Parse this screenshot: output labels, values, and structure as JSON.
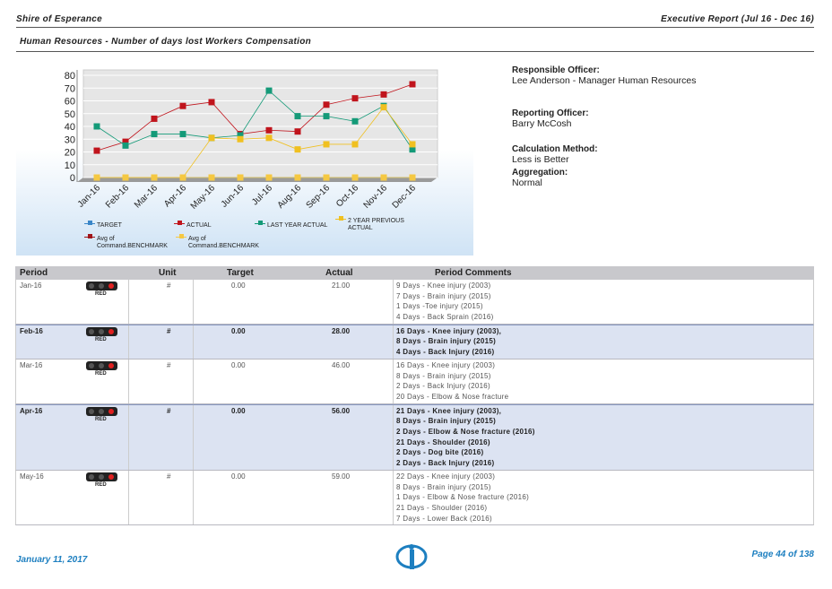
{
  "header": {
    "org": "Shire of Esperance",
    "report": "Executive Report (Jul 16 - Dec 16)",
    "subtitle": "Human Resources - Number of days lost Workers Compensation"
  },
  "chart_data": {
    "type": "line",
    "categories": [
      "Jan-16",
      "Feb-16",
      "Mar-16",
      "Apr-16",
      "May-16",
      "Jun-16",
      "Jul-16",
      "Aug-16",
      "Sep-16",
      "Oct-16",
      "Nov-16",
      "Dec-16"
    ],
    "ylim": [
      0,
      80
    ],
    "yticks": [
      0,
      10,
      20,
      30,
      40,
      50,
      60,
      70,
      80
    ],
    "grid": true,
    "legend_position": "bottom",
    "series": [
      {
        "name": "TARGET",
        "color": "#3a86c8",
        "values": [
          0,
          0,
          0,
          0,
          0,
          0,
          0,
          0,
          0,
          0,
          0,
          0
        ]
      },
      {
        "name": "ACTUAL",
        "color": "#c0141c",
        "values": [
          21,
          28,
          46,
          56,
          59,
          34,
          37,
          36,
          57,
          62,
          65,
          73
        ]
      },
      {
        "name": "LAST YEAR ACTUAL",
        "color": "#149a78",
        "values": [
          40,
          25,
          34,
          34,
          31,
          33,
          68,
          48,
          48,
          44,
          56,
          22
        ]
      },
      {
        "name": "2 YEAR PREVIOUS ACTUAL",
        "color": "#f0c020",
        "values": [
          0,
          0,
          0,
          0,
          31,
          30,
          31,
          22,
          26,
          26,
          55,
          26
        ]
      },
      {
        "name": "Avg of Command.BENCHMARK",
        "color": "#a01418",
        "values": [
          null,
          null,
          null,
          null,
          null,
          null,
          null,
          null,
          null,
          null,
          null,
          null
        ]
      },
      {
        "name": "Avg of Command.BENCHMARK",
        "color": "#f5c842",
        "values": [
          0,
          0,
          0,
          0,
          0,
          0,
          0,
          0,
          0,
          0,
          0,
          0
        ]
      }
    ]
  },
  "info": [
    {
      "label": "Responsible Officer:",
      "value": "Lee Anderson - Manager Human Resources"
    },
    {
      "label": "Reporting Officer:",
      "value": "Barry McCosh"
    },
    {
      "label": "Calculation Method:",
      "value": "Less is Better"
    },
    {
      "label": "Aggregation:",
      "value": "Normal"
    }
  ],
  "table": {
    "columns": [
      "Period",
      "Unit",
      "Target",
      "Actual",
      "Period Comments"
    ],
    "rows": [
      {
        "period": "Jan-16",
        "status": "RED",
        "unit": "#",
        "target": "0.00",
        "actual": "21.00",
        "comments": [
          "9 Days - Knee injury (2003)",
          "7 Days - Brain injury (2015)",
          "1 Days -Toe injury (2015)",
          "4 Days - Back Sprain (2016)"
        ]
      },
      {
        "period": "Feb-16",
        "status": "RED",
        "unit": "#",
        "target": "0.00",
        "actual": "28.00",
        "comments": [
          "16 Days - Knee injury (2003),",
          "8 Days - Brain injury (2015)",
          "4 Days - Back Injury (2016)"
        ]
      },
      {
        "period": "Mar-16",
        "status": "RED",
        "unit": "#",
        "target": "0.00",
        "actual": "46.00",
        "comments": [
          "16 Days - Knee injury (2003)",
          "8 Days - Brain injury (2015)",
          "2 Days - Back Injury (2016)",
          "20 Days - Elbow & Nose fracture"
        ]
      },
      {
        "period": "Apr-16",
        "status": "RED",
        "unit": "#",
        "target": "0.00",
        "actual": "56.00",
        "comments": [
          "21 Days - Knee injury (2003),",
          "8 Days - Brain injury (2015)",
          "2 Days - Elbow & Nose fracture (2016)",
          "21 Days - Shoulder (2016)",
          "2 Days - Dog bite (2016)",
          "2 Days - Back Injury (2016)"
        ]
      },
      {
        "period": "May-16",
        "status": "RED",
        "unit": "#",
        "target": "0.00",
        "actual": "59.00",
        "comments": [
          "22 Days - Knee injury (2003)",
          "8 Days - Brain injury (2015)",
          "1 Days - Elbow & Nose fracture (2016)",
          "21 Days - Shoulder (2016)",
          "7 Days - Lower Back (2016)"
        ]
      }
    ]
  },
  "footer": {
    "date": "January 11, 2017",
    "page": "Page 44 of 138"
  }
}
